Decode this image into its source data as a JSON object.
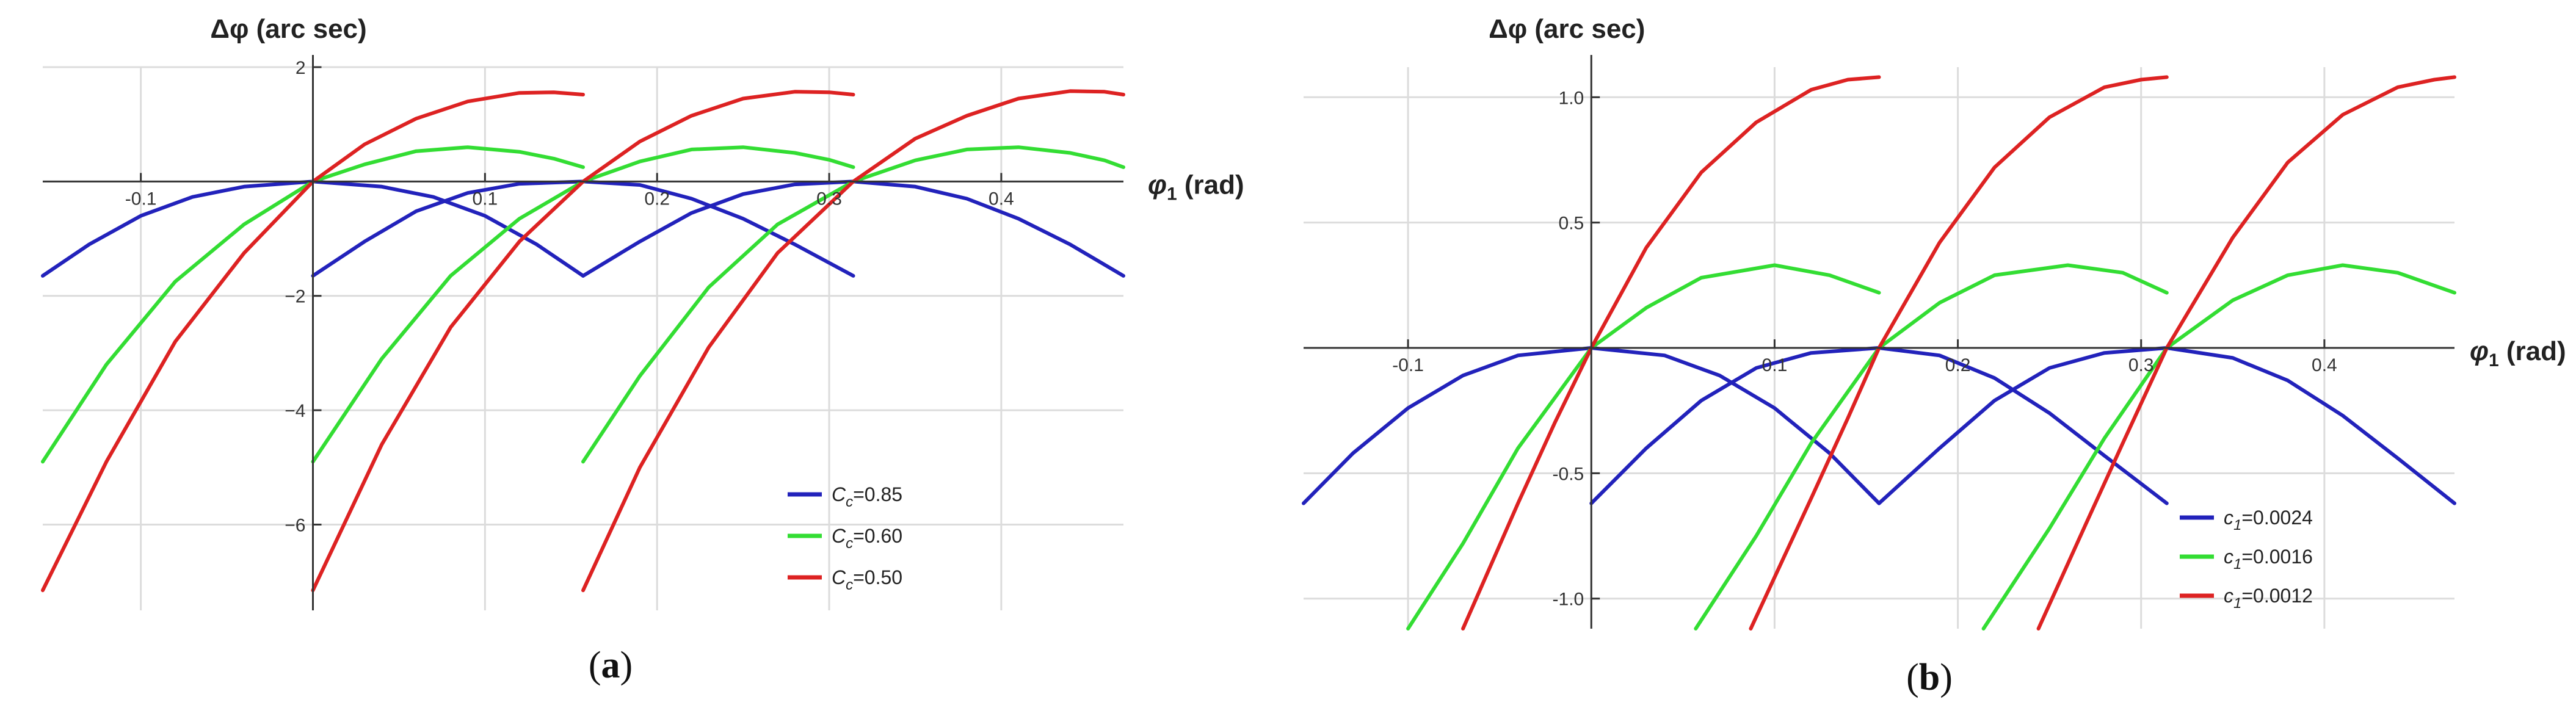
{
  "chart_data": [
    {
      "type": "line",
      "panel_label": {
        "open": "(",
        "letter": "a",
        "close": ")"
      },
      "ylabel": "Δφ (arc sec)",
      "xlabel": "φ1 (rad)",
      "xlim": [
        -0.157,
        0.471
      ],
      "ylim": [
        -7.5,
        2.0
      ],
      "xticks": [
        -0.1,
        0.1,
        0.2,
        0.3,
        0.4
      ],
      "xtick_labels": [
        "-0.1",
        "0.1",
        "0.2",
        "0.3",
        "0.4"
      ],
      "yticks": [
        2,
        -2,
        -4,
        -6
      ],
      "ytick_labels": [
        "2",
        "−2",
        "−4",
        "−6"
      ],
      "grid": true,
      "legend_position": "bottom-right",
      "series": [
        {
          "name": "Cc=0.85",
          "legend_parts": [
            "C",
            "c",
            "=0.85"
          ],
          "color": "#2222bb",
          "segments": [
            [
              [
                -0.157,
                -1.65
              ],
              [
                -0.13,
                -1.1
              ],
              [
                -0.1,
                -0.6
              ],
              [
                -0.07,
                -0.27
              ],
              [
                -0.04,
                -0.09
              ],
              [
                0,
                0
              ],
              [
                0.04,
                -0.09
              ],
              [
                0.07,
                -0.27
              ],
              [
                0.1,
                -0.6
              ],
              [
                0.13,
                -1.1
              ],
              [
                0.157,
                -1.65
              ]
            ],
            [
              [
                0,
                -1.65
              ],
              [
                0.03,
                -1.05
              ],
              [
                0.06,
                -0.52
              ],
              [
                0.09,
                -0.2
              ],
              [
                0.12,
                -0.04
              ],
              [
                0.157,
                0
              ],
              [
                0.19,
                -0.06
              ],
              [
                0.22,
                -0.3
              ],
              [
                0.25,
                -0.65
              ],
              [
                0.28,
                -1.1
              ],
              [
                0.314,
                -1.65
              ]
            ],
            [
              [
                0.157,
                -1.65
              ],
              [
                0.19,
                -1.05
              ],
              [
                0.22,
                -0.55
              ],
              [
                0.25,
                -0.22
              ],
              [
                0.28,
                -0.05
              ],
              [
                0.314,
                0
              ],
              [
                0.35,
                -0.09
              ],
              [
                0.38,
                -0.3
              ],
              [
                0.41,
                -0.65
              ],
              [
                0.44,
                -1.1
              ],
              [
                0.471,
                -1.65
              ]
            ]
          ]
        },
        {
          "name": "Cc=0.60",
          "legend_parts": [
            "C",
            "c",
            "=0.60"
          ],
          "color": "#33dd33",
          "segments": [
            [
              [
                -0.157,
                -4.9
              ],
              [
                -0.12,
                -3.2
              ],
              [
                -0.08,
                -1.75
              ],
              [
                -0.04,
                -0.75
              ],
              [
                0,
                0
              ],
              [
                0.03,
                0.3
              ],
              [
                0.06,
                0.53
              ],
              [
                0.09,
                0.6
              ],
              [
                0.12,
                0.52
              ],
              [
                0.14,
                0.4
              ],
              [
                0.157,
                0.25
              ]
            ],
            [
              [
                0,
                -4.9
              ],
              [
                0.04,
                -3.1
              ],
              [
                0.08,
                -1.65
              ],
              [
                0.12,
                -0.65
              ],
              [
                0.157,
                0
              ],
              [
                0.19,
                0.35
              ],
              [
                0.22,
                0.56
              ],
              [
                0.25,
                0.6
              ],
              [
                0.28,
                0.5
              ],
              [
                0.3,
                0.38
              ],
              [
                0.314,
                0.25
              ]
            ],
            [
              [
                0.157,
                -4.9
              ],
              [
                0.19,
                -3.4
              ],
              [
                0.23,
                -1.85
              ],
              [
                0.27,
                -0.75
              ],
              [
                0.314,
                0
              ],
              [
                0.35,
                0.37
              ],
              [
                0.38,
                0.56
              ],
              [
                0.41,
                0.6
              ],
              [
                0.44,
                0.5
              ],
              [
                0.46,
                0.37
              ],
              [
                0.471,
                0.25
              ]
            ]
          ]
        },
        {
          "name": "Cc=0.50",
          "legend_parts": [
            "C",
            "c",
            "=0.50"
          ],
          "color": "#dd2222",
          "segments": [
            [
              [
                -0.157,
                -7.15
              ],
              [
                -0.12,
                -4.9
              ],
              [
                -0.08,
                -2.8
              ],
              [
                -0.04,
                -1.25
              ],
              [
                0,
                0
              ],
              [
                0.03,
                0.65
              ],
              [
                0.06,
                1.1
              ],
              [
                0.09,
                1.4
              ],
              [
                0.12,
                1.55
              ],
              [
                0.14,
                1.56
              ],
              [
                0.157,
                1.52
              ]
            ],
            [
              [
                0,
                -7.15
              ],
              [
                0.04,
                -4.6
              ],
              [
                0.08,
                -2.55
              ],
              [
                0.12,
                -1.05
              ],
              [
                0.157,
                0
              ],
              [
                0.19,
                0.7
              ],
              [
                0.22,
                1.15
              ],
              [
                0.25,
                1.45
              ],
              [
                0.28,
                1.57
              ],
              [
                0.3,
                1.56
              ],
              [
                0.314,
                1.52
              ]
            ],
            [
              [
                0.157,
                -7.15
              ],
              [
                0.19,
                -5.0
              ],
              [
                0.23,
                -2.9
              ],
              [
                0.27,
                -1.25
              ],
              [
                0.314,
                0
              ],
              [
                0.35,
                0.75
              ],
              [
                0.38,
                1.15
              ],
              [
                0.41,
                1.45
              ],
              [
                0.44,
                1.58
              ],
              [
                0.46,
                1.57
              ],
              [
                0.471,
                1.52
              ]
            ]
          ]
        }
      ]
    },
    {
      "type": "line",
      "panel_label": {
        "open": "(",
        "letter": "b",
        "close": ")"
      },
      "ylabel": "Δφ (arc sec)",
      "xlabel": "φ1 (rad)",
      "xlim": [
        -0.157,
        0.471
      ],
      "ylim": [
        -1.12,
        1.12
      ],
      "xticks": [
        -0.1,
        0.1,
        0.2,
        0.3,
        0.4
      ],
      "xtick_labels": [
        "-0.1",
        "0.1",
        "0.2",
        "0.3",
        "0.4"
      ],
      "yticks": [
        1.0,
        0.5,
        -0.5,
        -1.0
      ],
      "ytick_labels": [
        "1.0",
        "0.5",
        "-0.5",
        "-1.0"
      ],
      "grid": true,
      "legend_position": "bottom-right",
      "series": [
        {
          "name": "c1=0.0024",
          "legend_parts": [
            "c",
            "1",
            "=0.0024"
          ],
          "color": "#2222bb",
          "segments": [
            [
              [
                -0.157,
                -0.62
              ],
              [
                -0.13,
                -0.42
              ],
              [
                -0.1,
                -0.24
              ],
              [
                -0.07,
                -0.11
              ],
              [
                -0.04,
                -0.03
              ],
              [
                0,
                0
              ],
              [
                0.04,
                -0.03
              ],
              [
                0.07,
                -0.11
              ],
              [
                0.1,
                -0.24
              ],
              [
                0.13,
                -0.42
              ],
              [
                0.157,
                -0.62
              ]
            ],
            [
              [
                0,
                -0.62
              ],
              [
                0.03,
                -0.4
              ],
              [
                0.06,
                -0.21
              ],
              [
                0.09,
                -0.08
              ],
              [
                0.12,
                -0.02
              ],
              [
                0.157,
                0
              ],
              [
                0.19,
                -0.03
              ],
              [
                0.22,
                -0.12
              ],
              [
                0.25,
                -0.26
              ],
              [
                0.28,
                -0.43
              ],
              [
                0.314,
                -0.62
              ]
            ],
            [
              [
                0.157,
                -0.62
              ],
              [
                0.19,
                -0.4
              ],
              [
                0.22,
                -0.21
              ],
              [
                0.25,
                -0.08
              ],
              [
                0.28,
                -0.02
              ],
              [
                0.314,
                0
              ],
              [
                0.35,
                -0.04
              ],
              [
                0.38,
                -0.13
              ],
              [
                0.41,
                -0.27
              ],
              [
                0.44,
                -0.44
              ],
              [
                0.471,
                -0.62
              ]
            ]
          ]
        },
        {
          "name": "c1=0.0016",
          "legend_parts": [
            "c",
            "1",
            "=0.0016"
          ],
          "color": "#33dd33",
          "segments": [
            [
              [
                -0.1,
                -1.12
              ],
              [
                -0.07,
                -0.78
              ],
              [
                -0.04,
                -0.4
              ],
              [
                0,
                0
              ],
              [
                0.03,
                0.16
              ],
              [
                0.06,
                0.28
              ],
              [
                0.1,
                0.33
              ],
              [
                0.13,
                0.29
              ],
              [
                0.157,
                0.22
              ]
            ],
            [
              [
                0.057,
                -1.12
              ],
              [
                0.09,
                -0.75
              ],
              [
                0.12,
                -0.38
              ],
              [
                0.157,
                0
              ],
              [
                0.19,
                0.18
              ],
              [
                0.22,
                0.29
              ],
              [
                0.26,
                0.33
              ],
              [
                0.29,
                0.3
              ],
              [
                0.314,
                0.22
              ]
            ],
            [
              [
                0.214,
                -1.12
              ],
              [
                0.25,
                -0.72
              ],
              [
                0.28,
                -0.36
              ],
              [
                0.314,
                0
              ],
              [
                0.35,
                0.19
              ],
              [
                0.38,
                0.29
              ],
              [
                0.41,
                0.33
              ],
              [
                0.44,
                0.3
              ],
              [
                0.471,
                0.22
              ]
            ]
          ]
        },
        {
          "name": "c1=0.0012",
          "legend_parts": [
            "c",
            "1",
            "=0.0012"
          ],
          "color": "#dd2222",
          "segments": [
            [
              [
                -0.07,
                -1.12
              ],
              [
                -0.04,
                -0.62
              ],
              [
                -0.02,
                -0.3
              ],
              [
                0,
                0
              ],
              [
                0.03,
                0.4
              ],
              [
                0.06,
                0.7
              ],
              [
                0.09,
                0.9
              ],
              [
                0.12,
                1.03
              ],
              [
                0.14,
                1.07
              ],
              [
                0.157,
                1.08
              ]
            ],
            [
              [
                0.087,
                -1.12
              ],
              [
                0.12,
                -0.6
              ],
              [
                0.14,
                -0.28
              ],
              [
                0.157,
                0
              ],
              [
                0.19,
                0.42
              ],
              [
                0.22,
                0.72
              ],
              [
                0.25,
                0.92
              ],
              [
                0.28,
                1.04
              ],
              [
                0.3,
                1.07
              ],
              [
                0.314,
                1.08
              ]
            ],
            [
              [
                0.244,
                -1.12
              ],
              [
                0.27,
                -0.7
              ],
              [
                0.29,
                -0.38
              ],
              [
                0.314,
                0
              ],
              [
                0.35,
                0.44
              ],
              [
                0.38,
                0.74
              ],
              [
                0.41,
                0.93
              ],
              [
                0.44,
                1.04
              ],
              [
                0.46,
                1.07
              ],
              [
                0.471,
                1.08
              ]
            ]
          ]
        }
      ]
    }
  ]
}
